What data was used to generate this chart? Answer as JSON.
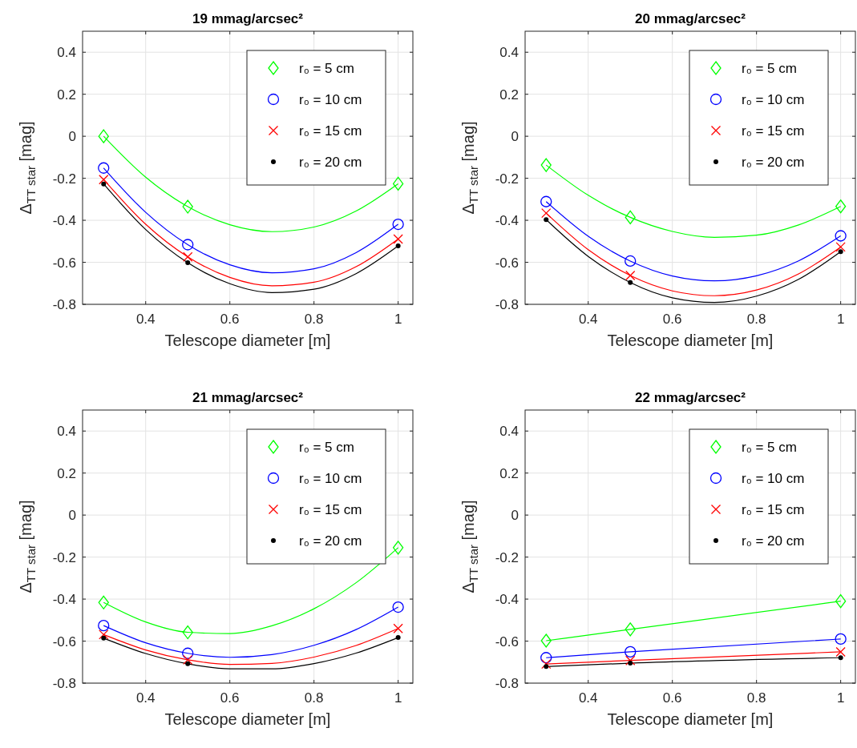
{
  "chart_data": [
    {
      "type": "scatter",
      "title": "19 mmag/arcsec²",
      "xlabel": "Telescope diameter [m]",
      "ylabel": "Δ$_{TT star}$ [mag]",
      "xlim": [
        0.25,
        1.035
      ],
      "ylim": [
        -0.8,
        0.5
      ],
      "xticks": [
        0.4,
        0.6,
        0.8,
        1
      ],
      "yticks": [
        -0.8,
        -0.6,
        -0.4,
        -0.2,
        0,
        0.2,
        0.4
      ],
      "grid": true,
      "legend": "top right",
      "x": [
        0.3,
        0.5,
        1
      ],
      "series": [
        {
          "name": "r₀ = 5 cm",
          "color": "#00ff00",
          "marker": "diamond",
          "values": [
            0,
            -0.335,
            -0.226
          ]
        },
        {
          "name": "r₀ = 10 cm",
          "color": "#0000ff",
          "marker": "circle",
          "values": [
            -0.151,
            -0.516,
            -0.419
          ]
        },
        {
          "name": "r₀ = 15 cm",
          "color": "#ff0000",
          "marker": "cross",
          "values": [
            -0.206,
            -0.574,
            -0.489
          ]
        },
        {
          "name": "r₀ = 20 cm",
          "color": "#000000",
          "values": [
            -0.227,
            -0.602,
            -0.522
          ]
        },
        {
          "type": "line",
          "color": "#00ff00",
          "x": [
            0.3,
            0.4,
            0.5,
            0.6,
            0.7,
            0.8,
            0.9,
            1
          ],
          "values": [
            0,
            -0.195,
            -0.335,
            -0.421,
            -0.454,
            -0.432,
            -0.356,
            -0.226
          ]
        },
        {
          "type": "line",
          "color": "#0000ff",
          "x": [
            0.3,
            0.4,
            0.5,
            0.6,
            0.7,
            0.8,
            0.9,
            1
          ],
          "values": [
            -0.151,
            -0.362,
            -0.516,
            -0.612,
            -0.65,
            -0.631,
            -0.554,
            -0.419
          ]
        },
        {
          "type": "line",
          "color": "#ff0000",
          "x": [
            0.3,
            0.4,
            0.5,
            0.6,
            0.7,
            0.8,
            0.9,
            1
          ],
          "values": [
            -0.206,
            -0.419,
            -0.574,
            -0.672,
            -0.712,
            -0.695,
            -0.621,
            -0.489
          ]
        },
        {
          "type": "line",
          "color": "#000000",
          "x": [
            0.3,
            0.4,
            0.5,
            0.6,
            0.7,
            0.8,
            0.9,
            1
          ],
          "values": [
            -0.227,
            -0.444,
            -0.602,
            -0.702,
            -0.744,
            -0.728,
            -0.654,
            -0.522
          ]
        }
      ]
    },
    {
      "type": "scatter",
      "title": "20 mmag/arcsec²",
      "xlabel": "Telescope diameter [m]",
      "ylabel": "Δ$_{TT star}$ [mag]",
      "xlim": [
        0.25,
        1.035
      ],
      "ylim": [
        -0.8,
        0.5
      ],
      "xticks": [
        0.4,
        0.6,
        0.8,
        1
      ],
      "yticks": [
        -0.8,
        -0.6,
        -0.4,
        -0.2,
        0,
        0.2,
        0.4
      ],
      "grid": true,
      "legend": "top right",
      "x": [
        0.3,
        0.5,
        1
      ],
      "series": [
        {
          "name": "r₀ = 5 cm",
          "color": "#00ff00",
          "marker": "diamond",
          "values": [
            -0.137,
            -0.386,
            -0.334
          ]
        },
        {
          "name": "r₀ = 10 cm",
          "color": "#0000ff",
          "marker": "circle",
          "values": [
            -0.311,
            -0.594,
            -0.474
          ]
        },
        {
          "name": "r₀ = 15 cm",
          "color": "#ff0000",
          "marker": "cross",
          "values": [
            -0.366,
            -0.663,
            -0.527
          ]
        },
        {
          "name": "r₀ = 20 cm",
          "color": "#000000",
          "values": [
            -0.397,
            -0.696,
            -0.549
          ]
        },
        {
          "type": "line",
          "color": "#00ff00",
          "x": [
            0.3,
            0.4,
            0.5,
            0.6,
            0.7,
            0.8,
            0.9,
            1
          ],
          "values": [
            -0.137,
            -0.281,
            -0.386,
            -0.453,
            -0.481,
            -0.471,
            -0.422,
            -0.334
          ]
        },
        {
          "type": "line",
          "color": "#0000ff",
          "x": [
            0.3,
            0.4,
            0.5,
            0.6,
            0.7,
            0.8,
            0.9,
            1
          ],
          "values": [
            -0.311,
            -0.476,
            -0.594,
            -0.665,
            -0.688,
            -0.664,
            -0.593,
            -0.474
          ]
        },
        {
          "type": "line",
          "color": "#ff0000",
          "x": [
            0.3,
            0.4,
            0.5,
            0.6,
            0.7,
            0.8,
            0.9,
            1
          ],
          "values": [
            -0.366,
            -0.54,
            -0.663,
            -0.736,
            -0.759,
            -0.732,
            -0.655,
            -0.527
          ]
        },
        {
          "type": "line",
          "color": "#000000",
          "x": [
            0.3,
            0.4,
            0.5,
            0.6,
            0.7,
            0.8,
            0.9,
            1
          ],
          "values": [
            -0.397,
            -0.572,
            -0.696,
            -0.769,
            -0.791,
            -0.761,
            -0.681,
            -0.549
          ]
        }
      ]
    },
    {
      "type": "scatter",
      "title": "21 mmag/arcsec²",
      "xlabel": "Telescope diameter [m]",
      "ylabel": "Δ$_{TT star}$ [mag]",
      "xlim": [
        0.25,
        1.035
      ],
      "ylim": [
        -0.8,
        0.5
      ],
      "xticks": [
        0.4,
        0.6,
        0.8,
        1
      ],
      "yticks": [
        -0.8,
        -0.6,
        -0.4,
        -0.2,
        0,
        0.2,
        0.4
      ],
      "grid": true,
      "legend": "top right",
      "x": [
        0.3,
        0.5,
        1
      ],
      "series": [
        {
          "name": "r₀ = 5 cm",
          "color": "#00ff00",
          "marker": "diamond",
          "values": [
            -0.416,
            -0.558,
            -0.155
          ]
        },
        {
          "name": "r₀ = 10 cm",
          "color": "#0000ff",
          "marker": "circle",
          "values": [
            -0.526,
            -0.658,
            -0.438
          ]
        },
        {
          "name": "r₀ = 15 cm",
          "color": "#ff0000",
          "marker": "cross",
          "values": [
            -0.569,
            -0.689,
            -0.54
          ]
        },
        {
          "name": "r₀ = 20 cm",
          "color": "#000000",
          "values": [
            -0.586,
            -0.708,
            -0.583
          ]
        },
        {
          "type": "line",
          "color": "#00ff00",
          "x": [
            0.3,
            0.4,
            0.5,
            0.6,
            0.7,
            0.8,
            0.9,
            1
          ],
          "values": [
            -0.416,
            -0.509,
            -0.558,
            -0.564,
            -0.527,
            -0.446,
            -0.322,
            -0.155
          ]
        },
        {
          "type": "line",
          "color": "#0000ff",
          "x": [
            0.3,
            0.4,
            0.5,
            0.6,
            0.7,
            0.8,
            0.9,
            1
          ],
          "values": [
            -0.526,
            -0.608,
            -0.658,
            -0.677,
            -0.664,
            -0.62,
            -0.545,
            -0.438
          ]
        },
        {
          "type": "line",
          "color": "#ff0000",
          "x": [
            0.3,
            0.4,
            0.5,
            0.6,
            0.7,
            0.8,
            0.9,
            1
          ],
          "values": [
            -0.569,
            -0.642,
            -0.689,
            -0.711,
            -0.706,
            -0.676,
            -0.621,
            -0.54
          ]
        },
        {
          "type": "line",
          "color": "#000000",
          "x": [
            0.3,
            0.4,
            0.5,
            0.6,
            0.7,
            0.8,
            0.9,
            1
          ],
          "values": [
            -0.586,
            -0.659,
            -0.708,
            -0.732,
            -0.732,
            -0.707,
            -0.657,
            -0.583
          ]
        }
      ]
    },
    {
      "type": "scatter",
      "title": "22 mmag/arcsec²",
      "xlabel": "Telescope diameter [m]",
      "ylabel": "Δ$_{TT star}$ [mag]",
      "xlim": [
        0.25,
        1.035
      ],
      "ylim": [
        -0.8,
        0.5
      ],
      "xticks": [
        0.4,
        0.6,
        0.8,
        1
      ],
      "yticks": [
        -0.8,
        -0.6,
        -0.4,
        -0.2,
        0,
        0.2,
        0.4
      ],
      "grid": true,
      "legend": "top right",
      "x": [
        0.3,
        0.5,
        1
      ],
      "series": [
        {
          "name": "r₀ = 5 cm",
          "color": "#00ff00",
          "marker": "diamond",
          "values": [
            -0.598,
            -0.544,
            -0.41
          ]
        },
        {
          "name": "r₀ = 10 cm",
          "color": "#0000ff",
          "marker": "circle",
          "values": [
            -0.679,
            -0.651,
            -0.59
          ]
        },
        {
          "name": "r₀ = 15 cm",
          "color": "#ff0000",
          "marker": "cross",
          "values": [
            -0.709,
            -0.692,
            -0.651
          ]
        },
        {
          "name": "r₀ = 20 cm",
          "color": "#000000",
          "values": [
            -0.721,
            -0.705,
            -0.679
          ]
        },
        {
          "type": "line",
          "color": "#00ff00",
          "x": [
            0.3,
            0.5,
            1
          ],
          "values": [
            -0.598,
            -0.544,
            -0.41
          ]
        },
        {
          "type": "line",
          "color": "#0000ff",
          "x": [
            0.3,
            0.5,
            1
          ],
          "values": [
            -0.679,
            -0.651,
            -0.59
          ]
        },
        {
          "type": "line",
          "color": "#ff0000",
          "x": [
            0.3,
            0.5,
            1
          ],
          "values": [
            -0.709,
            -0.692,
            -0.651
          ]
        },
        {
          "type": "line",
          "color": "#000000",
          "x": [
            0.3,
            0.5,
            1
          ],
          "values": [
            -0.721,
            -0.705,
            -0.679
          ]
        }
      ]
    }
  ]
}
